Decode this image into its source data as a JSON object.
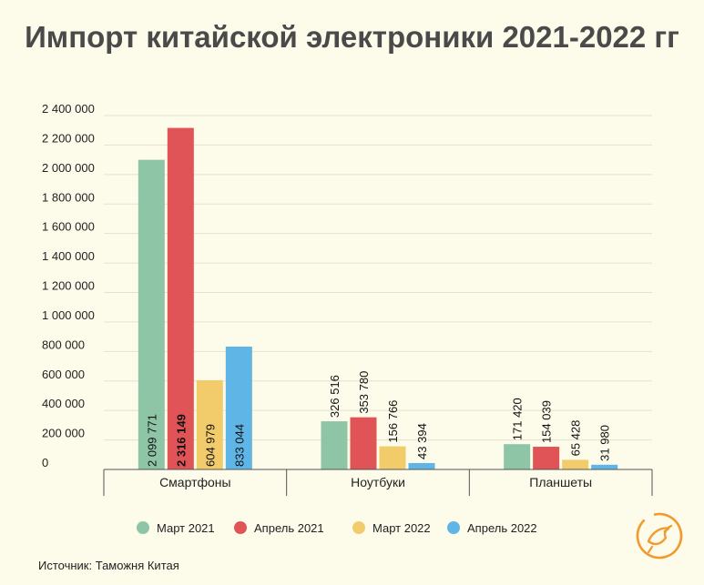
{
  "title": "Импорт китайской электроники 2021-2022 гг",
  "source": "Источник: Таможня Китая",
  "colors": {
    "background": "#fdfbea",
    "grid": "#e4e2cf",
    "logo": "#f29a2e"
  },
  "logo_icon": "bird-in-circle-icon",
  "chart_data": {
    "type": "bar",
    "categories": [
      "Смартфоны",
      "Ноутбуки",
      "Планшеты"
    ],
    "series": [
      {
        "name": "Март 2021",
        "color": "#8ec5a6",
        "values": [
          2099771,
          326516,
          171420
        ],
        "labels": [
          "2 099 771",
          "326 516",
          "171 420"
        ]
      },
      {
        "name": "Апрель 2021",
        "color": "#e05457",
        "values": [
          2316149,
          353780,
          154039
        ],
        "labels": [
          "2 316 149",
          "353 780",
          "154 039"
        ]
      },
      {
        "name": "Март 2022",
        "color": "#f2cc6b",
        "values": [
          604979,
          156766,
          65428
        ],
        "labels": [
          "604 979",
          "156 766",
          "65 428"
        ]
      },
      {
        "name": "Апрель 2022",
        "color": "#5fb6e6",
        "values": [
          833044,
          43394,
          31980
        ],
        "labels": [
          "833 044",
          "43 394",
          "31 980"
        ]
      }
    ],
    "yticks": [
      0,
      200000,
      400000,
      600000,
      800000,
      1000000,
      1200000,
      1400000,
      1600000,
      1800000,
      2000000,
      2200000,
      2400000
    ],
    "ytick_labels": [
      "0",
      "200 000",
      "400 000",
      "600 000",
      "800 000",
      "1 000 000",
      "1 200 000",
      "1 400 000",
      "1 600 000",
      "1 800 000",
      "2 000 000",
      "2 200 000",
      "2 400 000"
    ],
    "ylim": [
      0,
      2400000
    ],
    "grid": true,
    "legend_position": "bottom"
  }
}
